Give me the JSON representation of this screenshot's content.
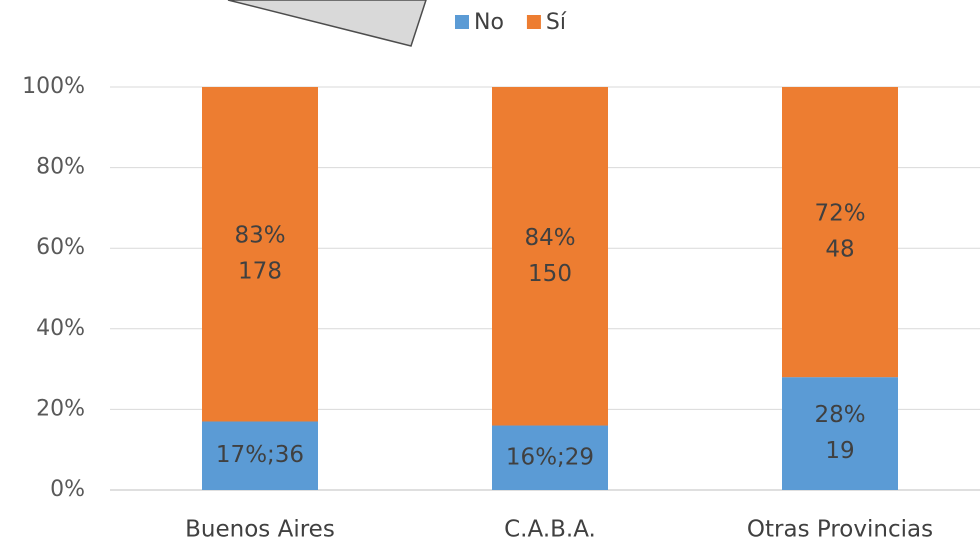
{
  "chart_data": {
    "type": "bar",
    "stacked": true,
    "categories": [
      "Buenos Aires",
      "C.A.B.A.",
      "Otras Provincias"
    ],
    "series": [
      {
        "name": "No",
        "color": "#5b9bd5",
        "values": [
          17,
          16,
          28
        ],
        "value_labels": [
          [
            "17%;36"
          ],
          [
            "16%;29"
          ],
          [
            "28%",
            "19"
          ]
        ]
      },
      {
        "name": "Sí",
        "color": "#ed7d31",
        "values": [
          83,
          84,
          72
        ],
        "value_labels": [
          [
            "83%",
            "178"
          ],
          [
            "84%",
            "150"
          ],
          [
            "72%",
            "48"
          ]
        ]
      }
    ],
    "ylim": [
      0,
      100
    ],
    "yticks": [
      {
        "value": 0,
        "label": "0%"
      },
      {
        "value": 20,
        "label": "20%"
      },
      {
        "value": 40,
        "label": "40%"
      },
      {
        "value": 60,
        "label": "60%"
      },
      {
        "value": 80,
        "label": "80%"
      },
      {
        "value": 100,
        "label": "100%"
      }
    ],
    "grid": true,
    "legend": "top"
  }
}
